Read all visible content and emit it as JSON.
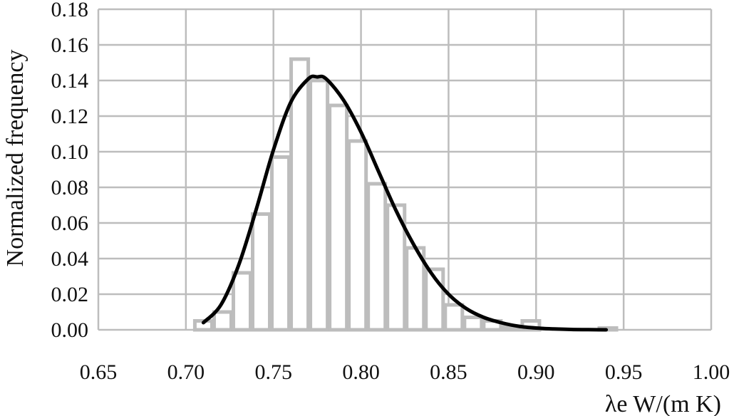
{
  "chart_data": {
    "type": "bar",
    "xlabel": "λe W/(m K)",
    "ylabel": "Normalized frequency",
    "xlim": [
      0.65,
      1.0
    ],
    "ylim": [
      0.0,
      0.18
    ],
    "x_ticks": [
      "0.65",
      "0.70",
      "0.75",
      "0.80",
      "0.85",
      "0.90",
      "0.95",
      "1.00"
    ],
    "y_ticks": [
      "0.00",
      "0.02",
      "0.04",
      "0.06",
      "0.08",
      "0.10",
      "0.12",
      "0.14",
      "0.16",
      "0.18"
    ],
    "grid": true,
    "bin_width": 0.011,
    "histogram": {
      "bin_centers": [
        0.71,
        0.721,
        0.732,
        0.743,
        0.754,
        0.765,
        0.776,
        0.787,
        0.798,
        0.809,
        0.82,
        0.831,
        0.842,
        0.853,
        0.864,
        0.875,
        0.886,
        0.897,
        0.908,
        0.919,
        0.93,
        0.941
      ],
      "values": [
        0.005,
        0.01,
        0.032,
        0.065,
        0.097,
        0.152,
        0.14,
        0.126,
        0.106,
        0.082,
        0.07,
        0.046,
        0.034,
        0.014,
        0.007,
        0.005,
        0.002,
        0.005,
        0.0,
        0.0,
        0.0,
        0.001
      ]
    },
    "fit_curve": {
      "x": [
        0.71,
        0.72,
        0.73,
        0.74,
        0.75,
        0.76,
        0.77,
        0.775,
        0.78,
        0.79,
        0.8,
        0.81,
        0.82,
        0.83,
        0.84,
        0.85,
        0.86,
        0.87,
        0.88,
        0.89,
        0.9,
        0.91,
        0.92,
        0.93,
        0.94
      ],
      "y": [
        0.004,
        0.014,
        0.036,
        0.067,
        0.101,
        0.128,
        0.141,
        0.142,
        0.141,
        0.129,
        0.111,
        0.089,
        0.067,
        0.048,
        0.032,
        0.02,
        0.012,
        0.007,
        0.004,
        0.002,
        0.001,
        0.0005,
        0.0002,
        0.0001,
        0.0
      ]
    }
  }
}
